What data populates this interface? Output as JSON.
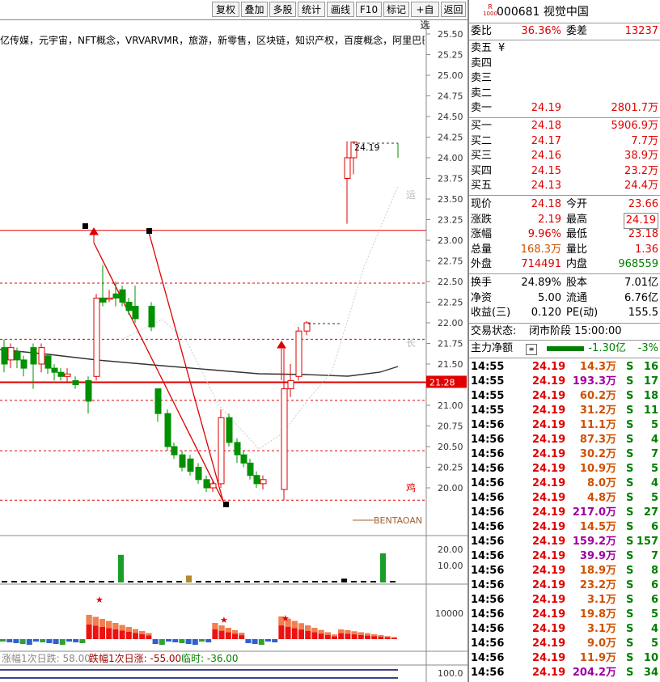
{
  "toolbar": {
    "buttons": [
      "复权",
      "叠加",
      "多股",
      "统计",
      "画线",
      "F10",
      "标记",
      "+自选",
      "返回"
    ]
  },
  "stock": {
    "badge_top": "R",
    "badge_bottom": "1000",
    "code_name": "000681 视觉中国"
  },
  "concepts": "亿传媒，元宇宙，NFT概念，VRVARVMR，旅游，新零售，区块链，知识产权，百度概念，阿里巴巴概念",
  "price_axis": [
    "25.50",
    "25.25",
    "25.00",
    "24.75",
    "24.50",
    "24.25",
    "24.00",
    "23.75",
    "23.50",
    "23.25",
    "23.00",
    "22.75",
    "22.50",
    "22.25",
    "22.00",
    "21.75",
    "21.50",
    "21.25",
    "21.00",
    "20.75",
    "20.50",
    "20.25",
    "20.00"
  ],
  "chart_labels": {
    "last_price_tag": "24.19",
    "current_line_tag": "21.28",
    "side_char_1": "运",
    "side_char_2": "长",
    "side_char_3": "鸡",
    "legend": "BENTAOAN"
  },
  "volume_axis": [
    "20.00",
    "10.00"
  ],
  "flow_axis": [
    "10000"
  ],
  "bottom_axis": [
    "100.0"
  ],
  "bottom_stats": {
    "rise": "涨幅1次日跌: 58.00",
    "fall": "跌幅1次日涨: -55.00",
    "temp": "临时: -36.00"
  },
  "quote": {
    "weibi_label": "委比",
    "weibi_value": "36.36%",
    "weicha_label": "委差",
    "weicha_value": "13237",
    "sell": [
      {
        "label": "卖五",
        "extra": "¥",
        "price": "",
        "vol": ""
      },
      {
        "label": "卖四",
        "extra": "",
        "price": "",
        "vol": ""
      },
      {
        "label": "卖三",
        "extra": "",
        "price": "",
        "vol": ""
      },
      {
        "label": "卖二",
        "extra": "",
        "price": "",
        "vol": ""
      },
      {
        "label": "卖一",
        "extra": "",
        "price": "24.19",
        "vol": "2801.7万"
      }
    ],
    "buy": [
      {
        "label": "买一",
        "price": "24.18",
        "vol": "5906.9万"
      },
      {
        "label": "买二",
        "price": "24.17",
        "vol": "7.7万"
      },
      {
        "label": "买三",
        "price": "24.16",
        "vol": "38.9万"
      },
      {
        "label": "买四",
        "price": "24.15",
        "vol": "23.2万"
      },
      {
        "label": "买五",
        "price": "24.13",
        "vol": "24.4万"
      }
    ],
    "stats": [
      {
        "l1": "现价",
        "v1": "24.18",
        "l2": "今开",
        "v2": "23.66",
        "c1": "red",
        "c2": "red"
      },
      {
        "l1": "涨跌",
        "v1": "2.19",
        "l2": "最高",
        "v2": "24.19",
        "c1": "red",
        "c2": "red"
      },
      {
        "l1": "涨幅",
        "v1": "9.96%",
        "l2": "最低",
        "v2": "23.18",
        "c1": "red",
        "c2": "red"
      },
      {
        "l1": "总量",
        "v1": "168.3万",
        "l2": "量比",
        "v2": "1.36",
        "c1": "orange",
        "c2": "red"
      },
      {
        "l1": "外盘",
        "v1": "714491",
        "l2": "内盘",
        "v2": "968559",
        "c1": "red",
        "c2": "green"
      }
    ],
    "fund": [
      {
        "l1": "换手",
        "v1": "24.89%",
        "l2": "股本",
        "v2": "7.01亿"
      },
      {
        "l1": "净资",
        "v1": "5.00",
        "l2": "流通",
        "v2": "6.76亿"
      },
      {
        "l1": "收益(三)",
        "v1": "0.120",
        "l2": "PE(动)",
        "v2": "155.5"
      }
    ],
    "status_label": "交易状态:",
    "status_value": "闭市阶段 15:00:00",
    "net_label": "主力净额",
    "net_value": "-1.30亿",
    "net_pct": "-3%"
  },
  "trades": [
    {
      "t": "14:55",
      "p": "24.19",
      "v": "14.3万",
      "vc": "orange",
      "n": "16"
    },
    {
      "t": "14:55",
      "p": "24.19",
      "v": "193.3万",
      "vc": "purple",
      "n": "17"
    },
    {
      "t": "14:55",
      "p": "24.19",
      "v": "60.2万",
      "vc": "orange",
      "n": "18"
    },
    {
      "t": "14:55",
      "p": "24.19",
      "v": "31.2万",
      "vc": "orange",
      "n": "11"
    },
    {
      "t": "14:56",
      "p": "24.19",
      "v": "11.1万",
      "vc": "orange",
      "n": "5"
    },
    {
      "t": "14:56",
      "p": "24.19",
      "v": "87.3万",
      "vc": "orange",
      "n": "4"
    },
    {
      "t": "14:56",
      "p": "24.19",
      "v": "30.2万",
      "vc": "orange",
      "n": "7"
    },
    {
      "t": "14:56",
      "p": "24.19",
      "v": "10.9万",
      "vc": "orange",
      "n": "5"
    },
    {
      "t": "14:56",
      "p": "24.19",
      "v": "8.0万",
      "vc": "orange",
      "n": "4"
    },
    {
      "t": "14:56",
      "p": "24.19",
      "v": "4.8万",
      "vc": "orange",
      "n": "5"
    },
    {
      "t": "14:56",
      "p": "24.19",
      "v": "217.0万",
      "vc": "purple",
      "n": "27"
    },
    {
      "t": "14:56",
      "p": "24.19",
      "v": "14.5万",
      "vc": "orange",
      "n": "6"
    },
    {
      "t": "14:56",
      "p": "24.19",
      "v": "159.2万",
      "vc": "purple",
      "n": "157"
    },
    {
      "t": "14:56",
      "p": "24.19",
      "v": "39.9万",
      "vc": "purple",
      "n": "7"
    },
    {
      "t": "14:56",
      "p": "24.19",
      "v": "18.9万",
      "vc": "orange",
      "n": "8"
    },
    {
      "t": "14:56",
      "p": "24.19",
      "v": "23.2万",
      "vc": "orange",
      "n": "6"
    },
    {
      "t": "14:56",
      "p": "24.19",
      "v": "3.1万",
      "vc": "orange",
      "n": "6"
    },
    {
      "t": "14:56",
      "p": "24.19",
      "v": "19.8万",
      "vc": "orange",
      "n": "5"
    },
    {
      "t": "14:56",
      "p": "24.19",
      "v": "3.1万",
      "vc": "orange",
      "n": "4"
    },
    {
      "t": "14:56",
      "p": "24.19",
      "v": "9.0万",
      "vc": "orange",
      "n": "5"
    },
    {
      "t": "14:56",
      "p": "24.19",
      "v": "11.9万",
      "vc": "orange",
      "n": "10"
    },
    {
      "t": "14:56",
      "p": "24.19",
      "v": "204.2万",
      "vc": "purple",
      "n": "34"
    }
  ],
  "trade_side": "S",
  "colors": {
    "up": "#e00000",
    "down": "#009000",
    "bg": "#ffffff"
  },
  "chart_data": {
    "type": "candlestick",
    "y_range": [
      19.8,
      25.6
    ],
    "reference_lines": [
      23.12,
      22.48,
      21.8,
      21.28,
      21.06,
      20.45,
      19.85
    ],
    "current_line": 21.28,
    "candles": [
      {
        "o": 21.7,
        "c": 21.5,
        "h": 21.8,
        "l": 21.4
      },
      {
        "o": 21.55,
        "c": 21.7,
        "h": 21.75,
        "l": 21.45
      },
      {
        "o": 21.65,
        "c": 21.55,
        "h": 21.7,
        "l": 21.45
      },
      {
        "o": 21.55,
        "c": 21.45,
        "h": 21.6,
        "l": 21.35
      },
      {
        "o": 21.7,
        "c": 21.5,
        "h": 21.75,
        "l": 21.2
      },
      {
        "o": 21.5,
        "c": 21.7,
        "h": 21.75,
        "l": 21.4
      },
      {
        "o": 21.6,
        "c": 21.45,
        "h": 21.62,
        "l": 21.38
      },
      {
        "o": 21.45,
        "c": 21.4,
        "h": 21.5,
        "l": 21.3
      },
      {
        "o": 21.4,
        "c": 21.35,
        "h": 21.45,
        "l": 21.3
      },
      {
        "o": 21.35,
        "c": 21.38,
        "h": 21.45,
        "l": 21.28
      },
      {
        "o": 21.3,
        "c": 21.25,
        "h": 21.35,
        "l": 21.2
      },
      {
        "o": 21.3,
        "c": 21.05,
        "h": 21.35,
        "l": 20.9
      },
      {
        "o": 21.35,
        "c": 22.3,
        "h": 22.35,
        "l": 21.3
      },
      {
        "o": 22.3,
        "c": 22.25,
        "h": 22.7,
        "l": 22.2
      },
      {
        "o": 22.3,
        "c": 22.3,
        "h": 22.4,
        "l": 22.25
      },
      {
        "o": 22.35,
        "c": 22.3,
        "h": 22.5,
        "l": 22.2
      },
      {
        "o": 22.4,
        "c": 22.25,
        "h": 22.45,
        "l": 22.2
      },
      {
        "o": 22.25,
        "c": 22.15,
        "h": 22.3,
        "l": 22.1
      },
      {
        "o": 22.2,
        "c": 22.05,
        "h": 22.45,
        "l": 22.0
      },
      {
        "o": 22.2,
        "c": 21.95,
        "h": 22.25,
        "l": 21.9
      },
      {
        "o": 21.2,
        "c": 20.9,
        "h": 21.2,
        "l": 20.8
      },
      {
        "o": 20.9,
        "c": 20.5,
        "h": 20.95,
        "l": 20.45
      },
      {
        "o": 20.5,
        "c": 20.4,
        "h": 20.55,
        "l": 20.35
      },
      {
        "o": 20.4,
        "c": 20.25,
        "h": 20.45,
        "l": 20.2
      },
      {
        "o": 20.35,
        "c": 20.2,
        "h": 20.4,
        "l": 20.15
      },
      {
        "o": 20.25,
        "c": 20.1,
        "h": 20.3,
        "l": 20.05
      },
      {
        "o": 20.1,
        "c": 20.0,
        "h": 20.15,
        "l": 19.95
      },
      {
        "o": 20.0,
        "c": 20.05,
        "h": 20.1,
        "l": 19.95
      },
      {
        "o": 20.05,
        "c": 20.85,
        "h": 20.95,
        "l": 20.0
      },
      {
        "o": 20.85,
        "c": 20.55,
        "h": 20.9,
        "l": 20.5
      },
      {
        "o": 20.55,
        "c": 20.4,
        "h": 20.6,
        "l": 20.3
      },
      {
        "o": 20.4,
        "c": 20.3,
        "h": 20.45,
        "l": 20.25
      },
      {
        "o": 20.3,
        "c": 20.15,
        "h": 20.35,
        "l": 20.1
      },
      {
        "o": 20.15,
        "c": 20.05,
        "h": 20.2,
        "l": 20.0
      },
      {
        "o": 20.05,
        "c": 20.1,
        "h": 20.15,
        "l": 19.98
      },
      {
        "o": 19.98,
        "c": 21.2,
        "h": 21.7,
        "l": 19.85
      },
      {
        "o": 21.2,
        "c": 21.3,
        "h": 21.5,
        "l": 21.1
      },
      {
        "o": 21.35,
        "c": 21.9,
        "h": 21.95,
        "l": 21.3
      },
      {
        "o": 21.9,
        "c": 22.0,
        "h": 22.02,
        "l": 21.85
      },
      {
        "o": 23.75,
        "c": 24.0,
        "h": 24.2,
        "l": 23.2
      },
      {
        "o": 24.0,
        "c": 24.19,
        "h": 24.2,
        "l": 23.8
      }
    ],
    "volume": [
      0.5,
      0.4,
      0.6,
      0.5,
      0.7,
      0.6,
      0.5,
      0.4,
      0.4,
      0.5,
      0.6,
      0.8,
      18,
      0.9,
      0.8,
      0.7,
      0.6,
      0.5,
      0.6,
      4.5,
      0.9,
      0.7,
      0.6,
      0.5,
      0.6,
      0.5,
      0.4,
      0.5,
      0.8,
      0.7,
      0.6,
      0.5,
      0.6,
      0.5,
      0.4,
      2.5,
      1.0,
      0.9,
      0.8,
      19,
      0.9
    ]
  }
}
